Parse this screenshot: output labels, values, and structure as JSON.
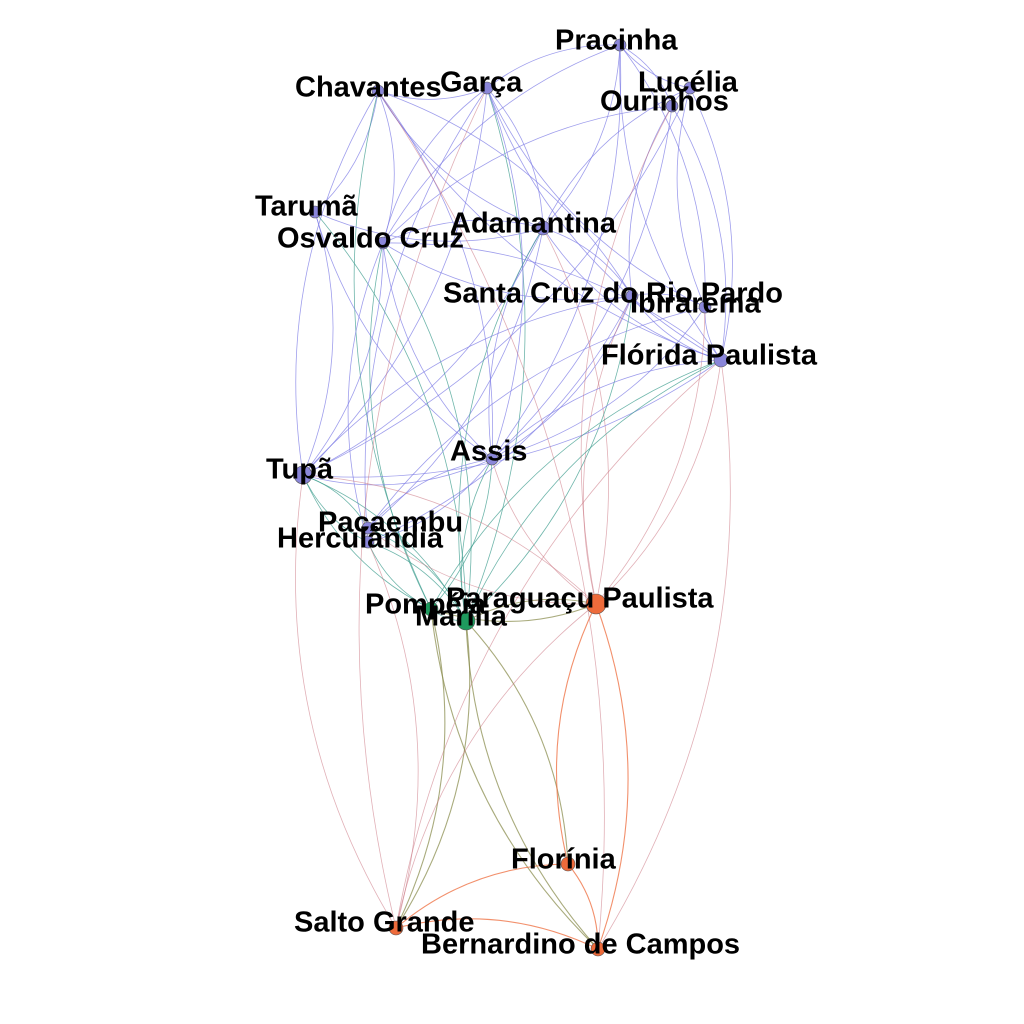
{
  "colors": {
    "blue": "#8a86d9",
    "green": "#1e9a5e",
    "orange": "#ee6b3b",
    "edge_blue": "#7f7ee6",
    "edge_teal": "#3f9d8f",
    "edge_red": "#c9707c",
    "edge_olive": "#8c8f52",
    "edge_orange": "#ee6b3b"
  },
  "nodes": [
    {
      "id": "pracinha",
      "label": "Pracinha",
      "group": "blue"
    },
    {
      "id": "lucelia",
      "label": "Lucélia",
      "group": "blue"
    },
    {
      "id": "ourinhos",
      "label": "Ourinhos",
      "group": "blue"
    },
    {
      "id": "chavantes",
      "label": "Chavantes",
      "group": "blue"
    },
    {
      "id": "garca",
      "label": "Garça",
      "group": "blue"
    },
    {
      "id": "taruma",
      "label": "Tarumã",
      "group": "blue"
    },
    {
      "id": "adamantina",
      "label": "Adamantina",
      "group": "blue"
    },
    {
      "id": "osvaldo",
      "label": "Osvaldo Cruz",
      "group": "blue"
    },
    {
      "id": "santacruz",
      "label": "Santa Cruz do Rio Pardo",
      "group": "blue"
    },
    {
      "id": "ibirarema",
      "label": "Ibirarema",
      "group": "blue"
    },
    {
      "id": "florida",
      "label": "Flórida Paulista",
      "group": "blue"
    },
    {
      "id": "assis",
      "label": "Assis",
      "group": "blue"
    },
    {
      "id": "tupa",
      "label": "Tupã",
      "group": "blue"
    },
    {
      "id": "pacaembu",
      "label": "Pacaembu",
      "group": "blue"
    },
    {
      "id": "herculandia",
      "label": "Herculândia",
      "group": "blue"
    },
    {
      "id": "pompeia",
      "label": "Pompéia",
      "group": "green"
    },
    {
      "id": "marilia",
      "label": "Marília",
      "group": "green"
    },
    {
      "id": "paraguacu",
      "label": "Paraguaçu Paulista",
      "group": "orange"
    },
    {
      "id": "florinia",
      "label": "Florínia",
      "group": "orange"
    },
    {
      "id": "saltogrande",
      "label": "Salto Grande",
      "group": "orange"
    },
    {
      "id": "bernardino",
      "label": "Bernardino de Campos",
      "group": "orange"
    }
  ],
  "edges": [
    [
      "chavantes",
      "garca",
      "edge_blue"
    ],
    [
      "garca",
      "pracinha",
      "edge_blue"
    ],
    [
      "pracinha",
      "lucelia",
      "edge_blue"
    ],
    [
      "pracinha",
      "ourinhos",
      "edge_blue"
    ],
    [
      "lucelia",
      "ourinhos",
      "edge_blue"
    ],
    [
      "chavantes",
      "osvaldo",
      "edge_blue"
    ],
    [
      "chavantes",
      "adamantina",
      "edge_blue"
    ],
    [
      "chavantes",
      "taruma",
      "edge_blue"
    ],
    [
      "chavantes",
      "tupa",
      "edge_blue"
    ],
    [
      "chavantes",
      "santacruz",
      "edge_blue"
    ],
    [
      "chavantes",
      "florida",
      "edge_blue"
    ],
    [
      "chavantes",
      "assis",
      "edge_blue"
    ],
    [
      "chavantes",
      "pompeia",
      "edge_teal"
    ],
    [
      "garca",
      "adamantina",
      "edge_blue"
    ],
    [
      "garca",
      "osvaldo",
      "edge_blue"
    ],
    [
      "garca",
      "tupa",
      "edge_blue"
    ],
    [
      "garca",
      "florida",
      "edge_blue"
    ],
    [
      "garca",
      "marilia",
      "edge_teal"
    ],
    [
      "garca",
      "ibirarema",
      "edge_blue"
    ],
    [
      "garca",
      "assis",
      "edge_blue"
    ],
    [
      "garca",
      "herculandia",
      "edge_blue"
    ],
    [
      "pracinha",
      "adamantina",
      "edge_blue"
    ],
    [
      "pracinha",
      "florida",
      "edge_blue"
    ],
    [
      "pracinha",
      "ibirarema",
      "edge_blue"
    ],
    [
      "pracinha",
      "osvaldo",
      "edge_blue"
    ],
    [
      "pracinha",
      "assis",
      "edge_blue"
    ],
    [
      "lucelia",
      "adamantina",
      "edge_blue"
    ],
    [
      "lucelia",
      "florida",
      "edge_blue"
    ],
    [
      "lucelia",
      "ibirarema",
      "edge_blue"
    ],
    [
      "lucelia",
      "tupa",
      "edge_blue"
    ],
    [
      "ourinhos",
      "santacruz",
      "edge_blue"
    ],
    [
      "ourinhos",
      "florida",
      "edge_blue"
    ],
    [
      "ourinhos",
      "osvaldo",
      "edge_blue"
    ],
    [
      "ourinhos",
      "assis",
      "edge_blue"
    ],
    [
      "taruma",
      "adamantina",
      "edge_blue"
    ],
    [
      "taruma",
      "tupa",
      "edge_blue"
    ],
    [
      "taruma",
      "assis",
      "edge_blue"
    ],
    [
      "taruma",
      "marilia",
      "edge_teal"
    ],
    [
      "adamantina",
      "osvaldo",
      "edge_blue"
    ],
    [
      "adamantina",
      "santacruz",
      "edge_blue"
    ],
    [
      "adamantina",
      "florida",
      "edge_blue"
    ],
    [
      "adamantina",
      "tupa",
      "edge_blue"
    ],
    [
      "adamantina",
      "assis",
      "edge_blue"
    ],
    [
      "adamantina",
      "pacaembu",
      "edge_blue"
    ],
    [
      "adamantina",
      "marilia",
      "edge_teal"
    ],
    [
      "adamantina",
      "paraguacu",
      "edge_red"
    ],
    [
      "osvaldo",
      "santacruz",
      "edge_blue"
    ],
    [
      "osvaldo",
      "tupa",
      "edge_blue"
    ],
    [
      "osvaldo",
      "herculandia",
      "edge_blue"
    ],
    [
      "osvaldo",
      "marilia",
      "edge_teal"
    ],
    [
      "osvaldo",
      "pompeia",
      "edge_teal"
    ],
    [
      "osvaldo",
      "florida",
      "edge_blue"
    ],
    [
      "osvaldo",
      "assis",
      "edge_blue"
    ],
    [
      "santacruz",
      "ibirarema",
      "edge_blue"
    ],
    [
      "santacruz",
      "florida",
      "edge_blue"
    ],
    [
      "santacruz",
      "assis",
      "edge_blue"
    ],
    [
      "santacruz",
      "tupa",
      "edge_blue"
    ],
    [
      "santacruz",
      "marilia",
      "edge_teal"
    ],
    [
      "santacruz",
      "paraguacu",
      "edge_red"
    ],
    [
      "santacruz",
      "herculandia",
      "edge_blue"
    ],
    [
      "ibirarema",
      "florida",
      "edge_blue"
    ],
    [
      "ibirarema",
      "assis",
      "edge_blue"
    ],
    [
      "ibirarema",
      "pacaembu",
      "edge_blue"
    ],
    [
      "ibirarema",
      "paraguacu",
      "edge_red"
    ],
    [
      "florida",
      "assis",
      "edge_blue"
    ],
    [
      "florida",
      "tupa",
      "edge_blue"
    ],
    [
      "florida",
      "marilia",
      "edge_teal"
    ],
    [
      "florida",
      "paraguacu",
      "edge_red"
    ],
    [
      "florida",
      "pompeia",
      "edge_teal"
    ],
    [
      "florida",
      "bernardino",
      "edge_red"
    ],
    [
      "florida",
      "saltogrande",
      "edge_red"
    ],
    [
      "assis",
      "tupa",
      "edge_blue"
    ],
    [
      "assis",
      "pacaembu",
      "edge_blue"
    ],
    [
      "assis",
      "herculandia",
      "edge_blue"
    ],
    [
      "assis",
      "marilia",
      "edge_teal"
    ],
    [
      "assis",
      "pompeia",
      "edge_teal"
    ],
    [
      "assis",
      "paraguacu",
      "edge_red"
    ],
    [
      "tupa",
      "pacaembu",
      "edge_teal"
    ],
    [
      "tupa",
      "herculandia",
      "edge_teal"
    ],
    [
      "tupa",
      "marilia",
      "edge_teal"
    ],
    [
      "tupa",
      "pompeia",
      "edge_teal"
    ],
    [
      "tupa",
      "paraguacu",
      "edge_red"
    ],
    [
      "tupa",
      "saltogrande",
      "edge_red"
    ],
    [
      "pacaembu",
      "marilia",
      "edge_teal"
    ],
    [
      "pacaembu",
      "paraguacu",
      "edge_red"
    ],
    [
      "herculandia",
      "marilia",
      "edge_teal"
    ],
    [
      "herculandia",
      "pompeia",
      "edge_teal"
    ],
    [
      "herculandia",
      "saltogrande",
      "edge_red"
    ],
    [
      "pompeia",
      "marilia",
      "edge_teal"
    ],
    [
      "marilia",
      "paraguacu",
      "edge_olive"
    ],
    [
      "pompeia",
      "paraguacu",
      "edge_olive"
    ],
    [
      "marilia",
      "florinia",
      "edge_olive"
    ],
    [
      "marilia",
      "bernardino",
      "edge_olive"
    ],
    [
      "marilia",
      "saltogrande",
      "edge_olive"
    ],
    [
      "pompeia",
      "bernardino",
      "edge_olive"
    ],
    [
      "pompeia",
      "saltogrande",
      "edge_olive"
    ],
    [
      "paraguacu",
      "florinia",
      "edge_orange"
    ],
    [
      "paraguacu",
      "bernardino",
      "edge_orange"
    ],
    [
      "paraguacu",
      "saltogrande",
      "edge_red"
    ],
    [
      "florinia",
      "bernardino",
      "edge_orange"
    ],
    [
      "florinia",
      "saltogrande",
      "edge_orange"
    ],
    [
      "saltogrande",
      "bernardino",
      "edge_orange"
    ],
    [
      "ourinhos",
      "paraguacu",
      "edge_red"
    ],
    [
      "chavantes",
      "bernardino",
      "edge_red"
    ],
    [
      "garca",
      "saltogrande",
      "edge_red"
    ]
  ]
}
